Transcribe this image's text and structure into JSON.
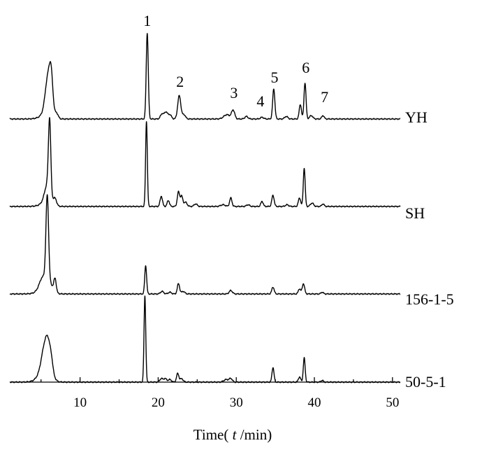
{
  "chart_data": {
    "type": "line",
    "title": "",
    "xlabel": {
      "prefix": "Time( ",
      "variable": "t",
      "suffix": " /min)"
    },
    "ylabel": "",
    "xlim": [
      1,
      51
    ],
    "xticks": [
      10,
      20,
      30,
      40,
      50
    ],
    "grid": false,
    "legend": "none",
    "series": [
      {
        "name": "YH",
        "peaks": [
          [
            5.9,
            0.42,
            0.35
          ],
          [
            6.3,
            0.34,
            0.22
          ],
          [
            7.0,
            0.06,
            0.2
          ],
          [
            18.6,
            1.0,
            0.13
          ],
          [
            20.5,
            0.06,
            0.2
          ],
          [
            21.0,
            0.08,
            0.2
          ],
          [
            21.5,
            0.05,
            0.2
          ],
          [
            22.7,
            0.27,
            0.2
          ],
          [
            23.3,
            0.05,
            0.2
          ],
          [
            28.8,
            0.05,
            0.4
          ],
          [
            29.6,
            0.1,
            0.2
          ],
          [
            31.3,
            0.03,
            0.2
          ],
          [
            33.3,
            0.02,
            0.2
          ],
          [
            34.8,
            0.35,
            0.14
          ],
          [
            36.4,
            0.03,
            0.2
          ],
          [
            38.2,
            0.17,
            0.14
          ],
          [
            38.8,
            0.42,
            0.13
          ],
          [
            39.6,
            0.04,
            0.2
          ],
          [
            41.1,
            0.04,
            0.15
          ]
        ],
        "solvent_front": [
          5.0,
          0.08
        ]
      },
      {
        "name": "SH",
        "peaks": [
          [
            6.1,
            0.85,
            0.15
          ],
          [
            5.8,
            0.2,
            0.35
          ],
          [
            6.8,
            0.08,
            0.2
          ],
          [
            18.5,
            1.0,
            0.11
          ],
          [
            20.4,
            0.12,
            0.15
          ],
          [
            21.3,
            0.07,
            0.15
          ],
          [
            22.6,
            0.17,
            0.15
          ],
          [
            23.0,
            0.12,
            0.15
          ],
          [
            23.5,
            0.05,
            0.2
          ],
          [
            24.8,
            0.03,
            0.2
          ],
          [
            28.3,
            0.02,
            0.3
          ],
          [
            29.3,
            0.1,
            0.15
          ],
          [
            31.5,
            0.02,
            0.2
          ],
          [
            33.3,
            0.06,
            0.15
          ],
          [
            34.7,
            0.13,
            0.15
          ],
          [
            36.5,
            0.02,
            0.2
          ],
          [
            38.1,
            0.1,
            0.15
          ],
          [
            38.7,
            0.45,
            0.12
          ],
          [
            39.7,
            0.04,
            0.2
          ],
          [
            41.1,
            0.03,
            0.15
          ]
        ],
        "solvent_front": [
          5.0,
          0.06
        ]
      },
      {
        "name": "156-1-5",
        "peaks": [
          [
            5.8,
            1.0,
            0.17
          ],
          [
            5.2,
            0.1,
            0.4
          ],
          [
            6.8,
            0.15,
            0.15
          ],
          [
            18.4,
            0.33,
            0.12
          ],
          [
            20.5,
            0.03,
            0.2
          ],
          [
            21.5,
            0.02,
            0.2
          ],
          [
            22.6,
            0.12,
            0.15
          ],
          [
            23.2,
            0.03,
            0.2
          ],
          [
            29.3,
            0.04,
            0.2
          ],
          [
            34.7,
            0.08,
            0.15
          ],
          [
            38.1,
            0.06,
            0.15
          ],
          [
            38.6,
            0.12,
            0.15
          ],
          [
            41.0,
            0.02,
            0.15
          ]
        ],
        "solvent_front": [
          4.8,
          0.13
        ]
      },
      {
        "name": "50-5-1",
        "peaks": [
          [
            5.5,
            0.28,
            0.4
          ],
          [
            5.9,
            0.17,
            0.25
          ],
          [
            6.3,
            0.12,
            0.2
          ],
          [
            18.3,
            1.0,
            0.11
          ],
          [
            20.4,
            0.04,
            0.2
          ],
          [
            20.9,
            0.04,
            0.2
          ],
          [
            21.5,
            0.03,
            0.2
          ],
          [
            22.5,
            0.1,
            0.15
          ],
          [
            23.0,
            0.04,
            0.2
          ],
          [
            28.7,
            0.03,
            0.3
          ],
          [
            29.3,
            0.04,
            0.2
          ],
          [
            34.7,
            0.17,
            0.13
          ],
          [
            38.1,
            0.06,
            0.15
          ],
          [
            38.7,
            0.28,
            0.12
          ],
          [
            41.0,
            0.02,
            0.15
          ]
        ],
        "solvent_front": [
          4.7,
          0.18
        ]
      }
    ],
    "annotations": [
      {
        "label": "1",
        "x": 18.6
      },
      {
        "label": "2",
        "x": 22.8
      },
      {
        "label": "3",
        "x": 29.7
      },
      {
        "label": "4",
        "x": 33.1
      },
      {
        "label": "5",
        "x": 34.9
      },
      {
        "label": "6",
        "x": 38.9
      },
      {
        "label": "7",
        "x": 41.3
      }
    ]
  }
}
